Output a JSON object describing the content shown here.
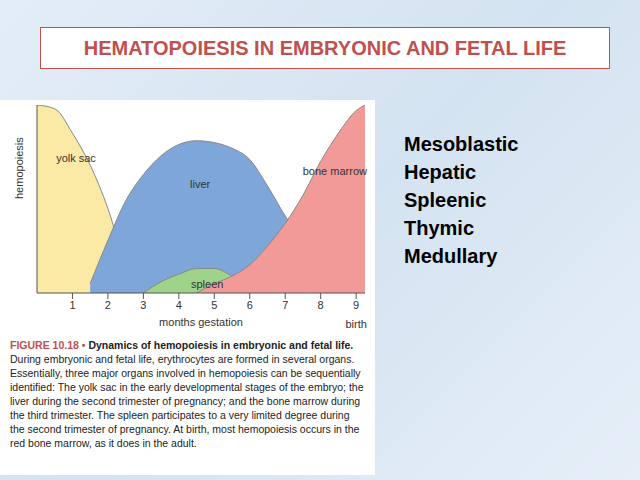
{
  "slide": {
    "title": "HEMATOPOIESIS IN EMBRYONIC AND FETAL LIFE",
    "list": [
      "Mesoblastic",
      "Hepatic",
      "Spleenic",
      "Thymic",
      "Medullary"
    ],
    "figure": {
      "number": "FIGURE 10.18 •",
      "title": "Dynamics of hemopoiesis in embryonic and fetal life.",
      "text": "During embryonic and fetal life, erythrocytes are formed in several organs. Essentially, three major organs involved in hemopoiesis can be sequentially identified: The yolk sac in the early developmental stages of the embryo; the liver during the second trimester of pregnancy; and the bone marrow during the third trimester. The spleen participates to a very limited degree during the second trimester of pregnancy. At birth, most hemopoiesis occurs in the red bone marrow, as it does in the adult."
    }
  },
  "chart_data": {
    "type": "area",
    "x_label": "months gestation",
    "y_label": "hemopoiesis",
    "annotations": [
      "birth"
    ],
    "x": [
      0,
      0.5,
      1,
      1.5,
      2,
      2.5,
      3,
      3.5,
      4,
      4.5,
      5,
      5.5,
      6,
      6.5,
      7,
      7.5,
      8,
      8.5,
      9,
      9.25
    ],
    "xlim": [
      0,
      9.25
    ],
    "xticks": [
      1,
      2,
      3,
      4,
      5,
      6,
      7,
      8,
      9
    ],
    "ylim": [
      0,
      100
    ],
    "tick_labels": "x",
    "grid": false,
    "series": [
      {
        "name": "yolk sac",
        "color": "#fbe9a6",
        "values": [
          100,
          98,
          85,
          68,
          45,
          15,
          0,
          null,
          null,
          null,
          null,
          null,
          null,
          null,
          null,
          null,
          null,
          null,
          null,
          null
        ]
      },
      {
        "name": "liver",
        "color": "#7fa6d8",
        "values": [
          null,
          null,
          null,
          5,
          28,
          49,
          63,
          73,
          79,
          81,
          80,
          77,
          71,
          57,
          41,
          28,
          15,
          5,
          0,
          null
        ]
      },
      {
        "name": "spleen",
        "color": "#9fd38a",
        "values": [
          null,
          null,
          null,
          null,
          null,
          null,
          0,
          6,
          10,
          13,
          13,
          9,
          3,
          0,
          null,
          null,
          null,
          null,
          null,
          null
        ]
      },
      {
        "name": "bone marrow",
        "color": "#f29a98",
        "values": [
          null,
          null,
          null,
          null,
          null,
          null,
          null,
          null,
          null,
          0,
          5,
          9,
          15,
          25,
          37,
          52,
          70,
          85,
          97,
          100
        ]
      }
    ]
  }
}
